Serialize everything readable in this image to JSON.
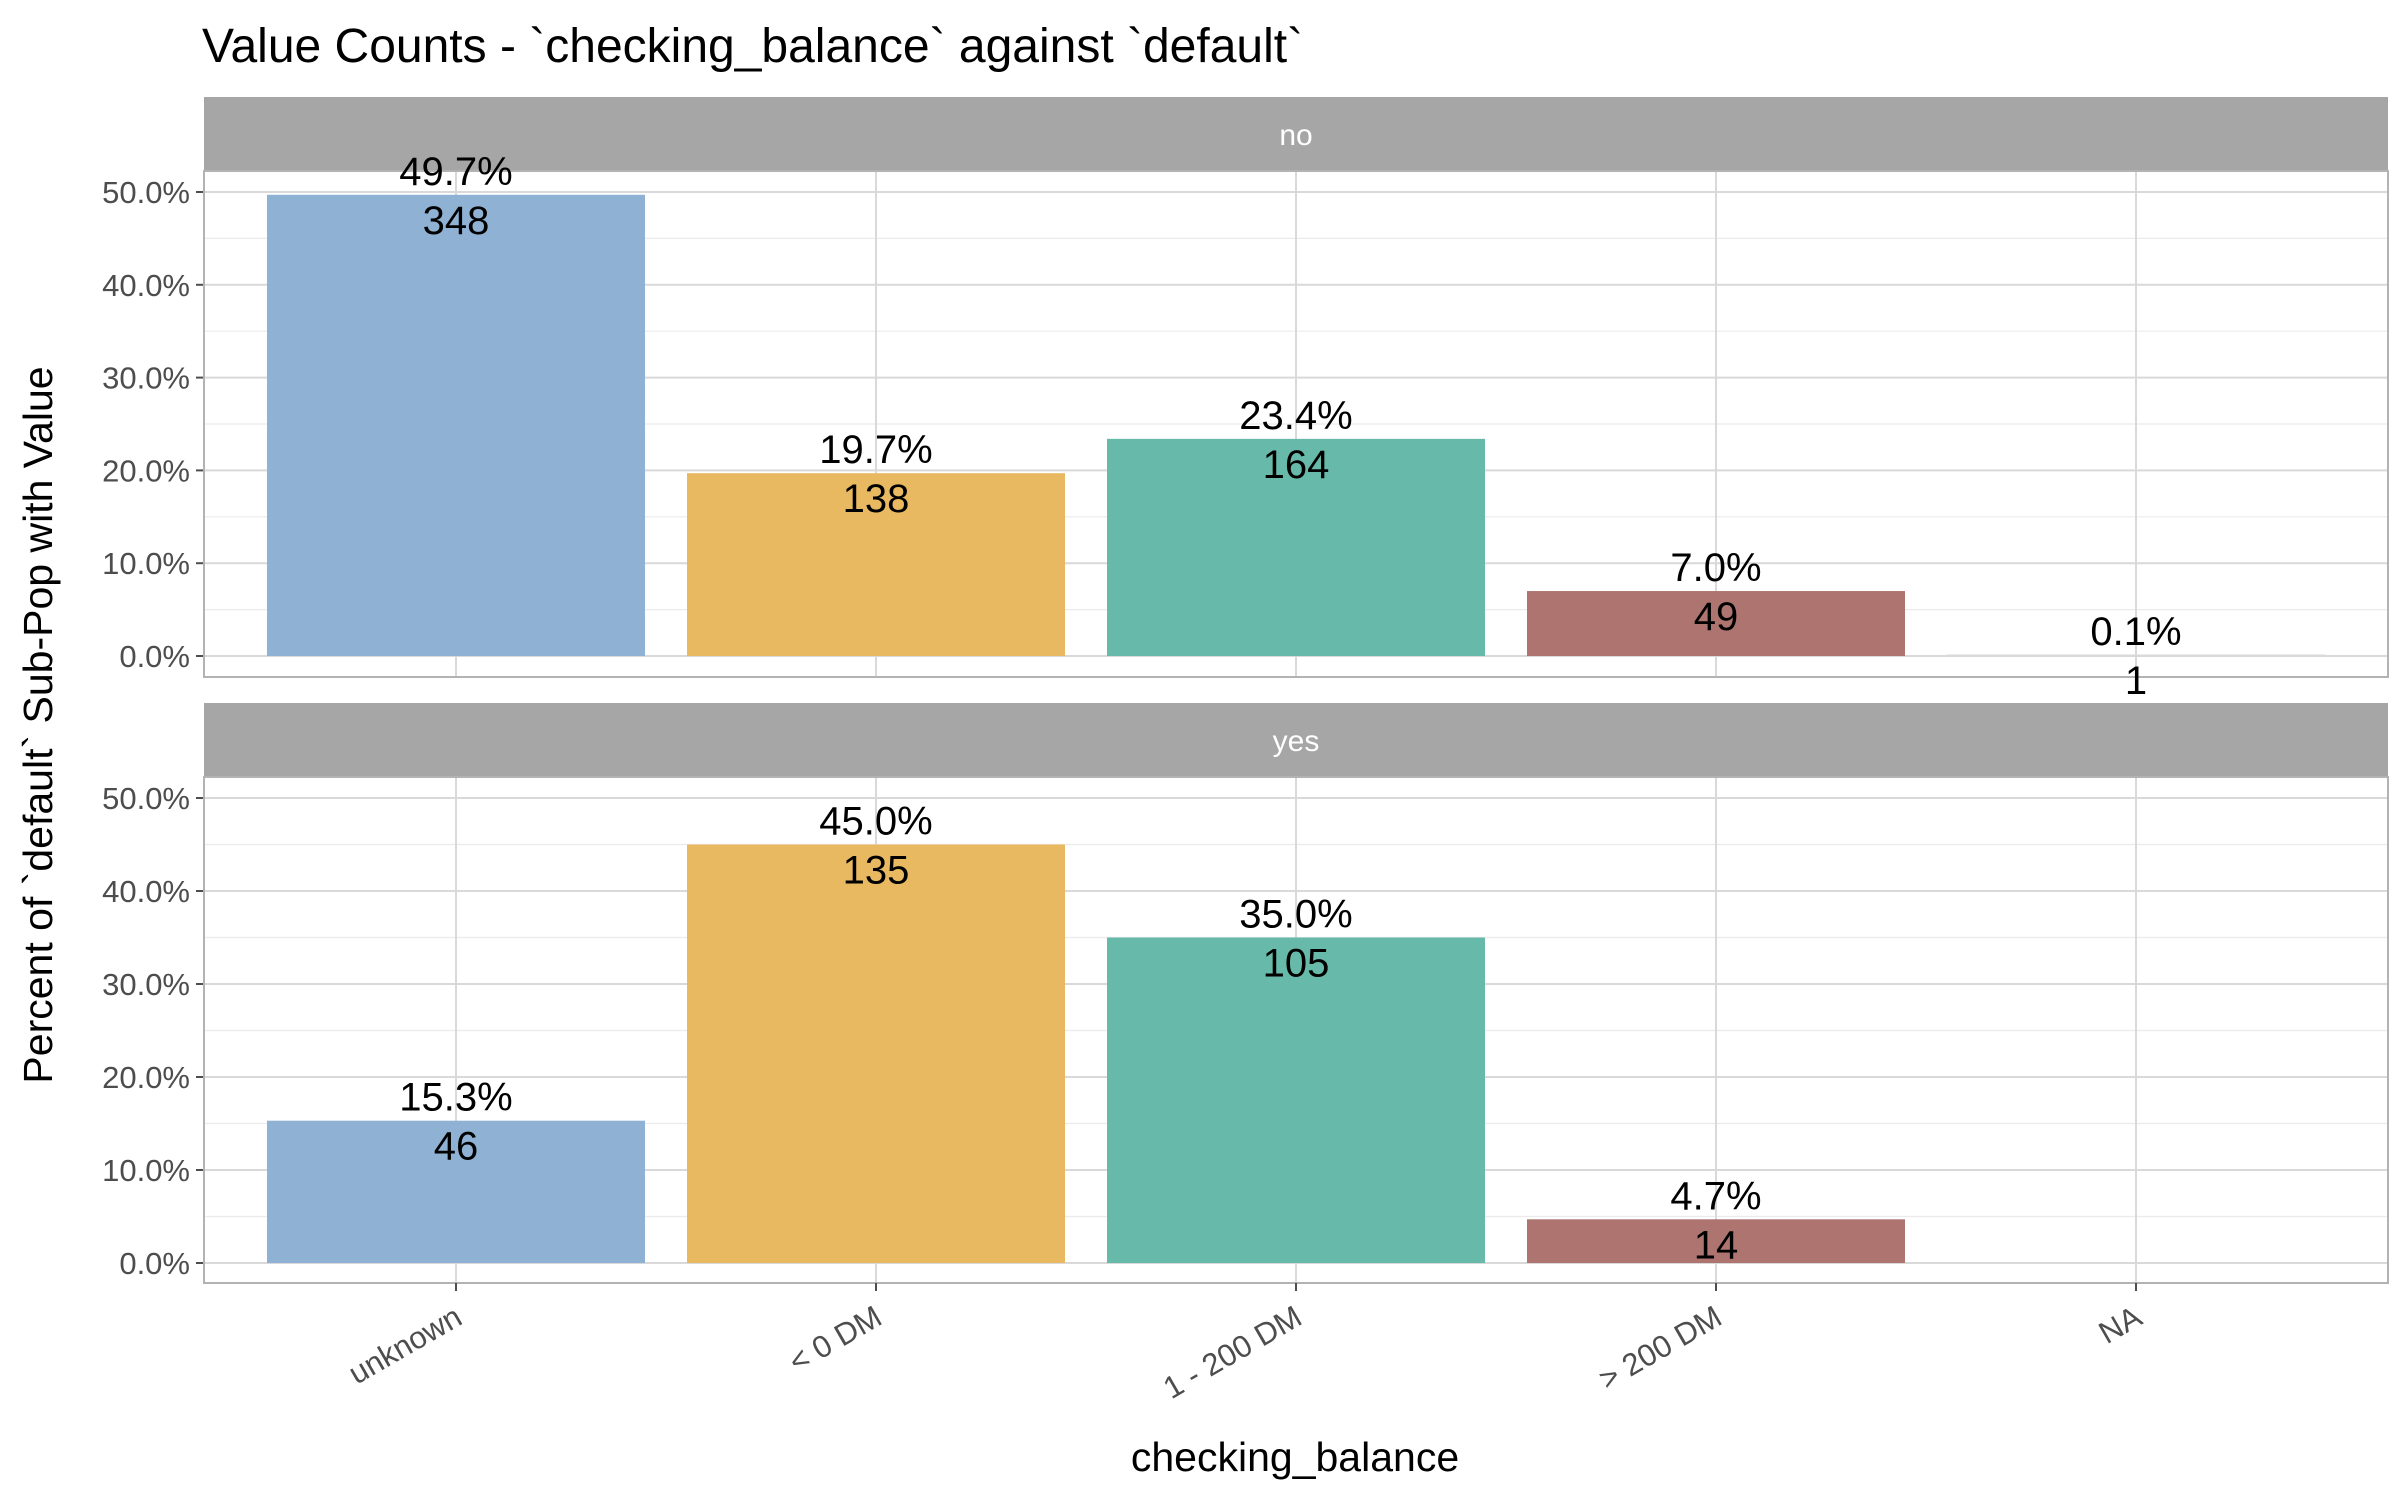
{
  "chart_data": {
    "type": "bar",
    "title": "Value Counts - `checking_balance` against `default`",
    "xlabel": "checking_balance",
    "ylabel": "Percent of `default` Sub-Pop with Value",
    "categories": [
      "unknown",
      "< 0 DM",
      "1 - 200 DM",
      "> 200 DM",
      "NA"
    ],
    "colors": [
      "#8fb1d4",
      "#e9b962",
      "#67b9a9",
      "#ad7470",
      "#d9d9d9"
    ],
    "ylim": [
      0,
      0.5
    ],
    "yticks": [
      0,
      0.1,
      0.2,
      0.3,
      0.4,
      0.5
    ],
    "ytick_labels": [
      "0.0%",
      "10.0%",
      "20.0%",
      "30.0%",
      "40.0%",
      "50.0%"
    ],
    "grid": true,
    "legend": "none",
    "panels": [
      {
        "strip": "no",
        "values": [
          0.497,
          0.197,
          0.234,
          0.07,
          0.001
        ],
        "percent_labels": [
          "49.7%",
          "19.7%",
          "23.4%",
          "7.0%",
          "0.1%"
        ],
        "counts": [
          "348",
          "138",
          "164",
          "49",
          "1"
        ]
      },
      {
        "strip": "yes",
        "values": [
          0.153,
          0.45,
          0.35,
          0.047,
          null
        ],
        "percent_labels": [
          "15.3%",
          "45.0%",
          "35.0%",
          "4.7%",
          ""
        ],
        "counts": [
          "46",
          "135",
          "105",
          "14",
          ""
        ]
      }
    ]
  }
}
